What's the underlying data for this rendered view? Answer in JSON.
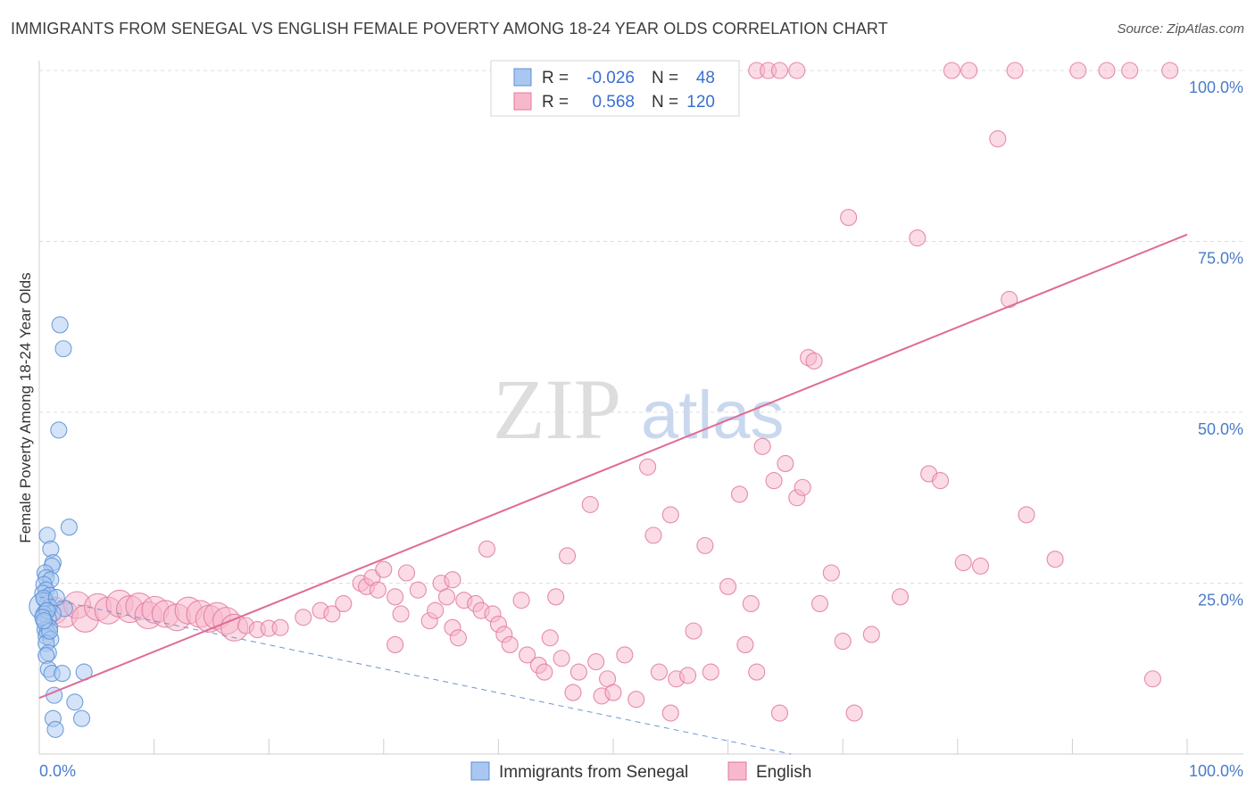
{
  "title": "IMMIGRANTS FROM SENEGAL VS ENGLISH FEMALE POVERTY AMONG 18-24 YEAR OLDS CORRELATION CHART",
  "source": "Source: ZipAtlas.com",
  "watermark": {
    "zip": "ZIP",
    "atlas": "atlas"
  },
  "colors": {
    "blue_fill": "#a9c7f0",
    "blue_stroke": "#5b8fd6",
    "pink_fill": "#f7b8cb",
    "pink_stroke": "#e07a9c",
    "pink_line": "#e06b95",
    "blue_line": "#6b96d6",
    "grid": "#dcdcdc",
    "tick_label": "#4a7cc9"
  },
  "legend": {
    "rows": [
      {
        "r_label": "R =",
        "r_value": "-0.026",
        "n_label": "N =",
        "n_value": "48"
      },
      {
        "r_label": "R =",
        "r_value": "0.568",
        "n_label": "N =",
        "n_value": "120"
      }
    ]
  },
  "bottom_legend": [
    "Immigrants from Senegal",
    "English"
  ],
  "chart_data": {
    "type": "scatter",
    "title": "IMMIGRANTS FROM SENEGAL VS ENGLISH FEMALE POVERTY AMONG 18-24 YEAR OLDS CORRELATION CHART",
    "xlabel": "",
    "ylabel": "Female Poverty Among 18-24 Year Olds",
    "xlim": [
      0,
      100
    ],
    "ylim": [
      0,
      100
    ],
    "x_tick_labels": [
      "0.0%",
      "100.0%"
    ],
    "y_ticks": [
      25,
      50,
      75,
      100
    ],
    "y_tick_labels": [
      "25.0%",
      "50.0%",
      "75.0%",
      "100.0%"
    ],
    "series": [
      {
        "name": "Immigrants from Senegal",
        "r": -0.026,
        "n": 48,
        "trend": {
          "x": [
            0,
            65.5
          ],
          "y": [
            23.0,
            0.0
          ],
          "style": "dashed"
        },
        "points": [
          [
            1.8,
            62.8,
            1
          ],
          [
            2.1,
            59.3,
            1
          ],
          [
            1.7,
            47.4,
            1
          ],
          [
            2.6,
            33.2,
            1
          ],
          [
            0.7,
            32.0,
            1
          ],
          [
            1.0,
            30.0,
            1
          ],
          [
            1.2,
            28.0,
            1
          ],
          [
            1.1,
            27.5,
            1
          ],
          [
            0.5,
            26.5,
            1
          ],
          [
            0.6,
            25.8,
            1
          ],
          [
            1.0,
            25.5,
            1
          ],
          [
            0.4,
            24.8,
            1
          ],
          [
            0.6,
            24.0,
            1
          ],
          [
            0.3,
            23.5,
            1
          ],
          [
            0.9,
            23.2,
            1
          ],
          [
            0.5,
            22.5,
            1
          ],
          [
            0.7,
            22.0,
            1
          ],
          [
            0.3,
            21.6,
            2
          ],
          [
            0.9,
            21.5,
            1
          ],
          [
            2.2,
            21.3,
            1
          ],
          [
            0.6,
            20.9,
            1
          ],
          [
            1.2,
            20.6,
            1
          ],
          [
            0.4,
            20.5,
            1
          ],
          [
            0.8,
            19.8,
            1
          ],
          [
            0.5,
            19.2,
            1
          ],
          [
            0.9,
            18.5,
            1
          ],
          [
            0.5,
            18.2,
            1
          ],
          [
            0.7,
            17.9,
            1
          ],
          [
            0.6,
            17.2,
            1
          ],
          [
            1.0,
            16.8,
            1
          ],
          [
            0.6,
            16.2,
            1
          ],
          [
            0.8,
            14.8,
            1
          ],
          [
            0.6,
            14.4,
            1
          ],
          [
            0.8,
            12.4,
            1
          ],
          [
            1.1,
            11.8,
            1
          ],
          [
            2.0,
            11.8,
            1
          ],
          [
            3.9,
            12.0,
            1
          ],
          [
            1.3,
            8.6,
            1
          ],
          [
            3.1,
            7.6,
            1
          ],
          [
            1.2,
            5.2,
            1
          ],
          [
            3.7,
            5.2,
            1
          ],
          [
            1.4,
            3.6,
            1
          ],
          [
            0.4,
            22.8,
            1
          ],
          [
            0.7,
            21.0,
            1
          ],
          [
            0.3,
            20.0,
            1
          ],
          [
            1.5,
            22.9,
            1
          ],
          [
            0.9,
            18.0,
            1
          ],
          [
            0.4,
            19.5,
            1
          ]
        ]
      },
      {
        "name": "English",
        "r": 0.568,
        "n": 120,
        "trend": {
          "x": [
            0,
            100
          ],
          "y": [
            8.2,
            76.0
          ],
          "style": "solid"
        },
        "points": [
          [
            1.3,
            21.0,
            2
          ],
          [
            2.2,
            20.5,
            2
          ],
          [
            3.3,
            21.8,
            2
          ],
          [
            4.0,
            19.8,
            2
          ],
          [
            5.1,
            21.5,
            2
          ],
          [
            6.0,
            21.0,
            2
          ],
          [
            7.0,
            22.0,
            2
          ],
          [
            7.9,
            21.2,
            2
          ],
          [
            8.7,
            21.6,
            2
          ],
          [
            9.5,
            20.3,
            2
          ],
          [
            10.1,
            21.1,
            2
          ],
          [
            11.0,
            20.5,
            2
          ],
          [
            12.0,
            20.0,
            2
          ],
          [
            13.0,
            21.0,
            2
          ],
          [
            14.0,
            20.5,
            2
          ],
          [
            14.8,
            19.8,
            2
          ],
          [
            15.5,
            20.2,
            2
          ],
          [
            16.3,
            19.5,
            2
          ],
          [
            17.0,
            18.5,
            2
          ],
          [
            18.0,
            18.8,
            1
          ],
          [
            19.0,
            18.2,
            1
          ],
          [
            20.0,
            18.4,
            1
          ],
          [
            21.0,
            18.5,
            1
          ],
          [
            23.0,
            20.0,
            1
          ],
          [
            24.5,
            21.0,
            1
          ],
          [
            25.5,
            20.5,
            1
          ],
          [
            26.5,
            22.0,
            1
          ],
          [
            28.0,
            25.0,
            1
          ],
          [
            28.5,
            24.5,
            1
          ],
          [
            29.0,
            25.8,
            1
          ],
          [
            29.5,
            24.0,
            1
          ],
          [
            30.0,
            27.0,
            1
          ],
          [
            31.0,
            23.0,
            1
          ],
          [
            31.5,
            20.5,
            1
          ],
          [
            32.0,
            26.5,
            1
          ],
          [
            33.0,
            24.0,
            1
          ],
          [
            34.0,
            19.5,
            1
          ],
          [
            34.5,
            21.0,
            1
          ],
          [
            35.0,
            25.0,
            1
          ],
          [
            35.5,
            23.0,
            1
          ],
          [
            36.0,
            18.5,
            1
          ],
          [
            36.5,
            17.0,
            1
          ],
          [
            37.0,
            22.5,
            1
          ],
          [
            38.0,
            22.0,
            1
          ],
          [
            38.5,
            21.0,
            1
          ],
          [
            39.5,
            20.5,
            1
          ],
          [
            40.0,
            19.0,
            1
          ],
          [
            40.5,
            17.5,
            1
          ],
          [
            41.0,
            16.0,
            1
          ],
          [
            42.0,
            22.5,
            1
          ],
          [
            42.5,
            14.5,
            1
          ],
          [
            43.5,
            13.0,
            1
          ],
          [
            44.0,
            12.0,
            1
          ],
          [
            45.0,
            23.0,
            1
          ],
          [
            45.5,
            14.0,
            1
          ],
          [
            46.0,
            29.0,
            1
          ],
          [
            46.5,
            9.0,
            1
          ],
          [
            47.0,
            12.0,
            1
          ],
          [
            48.0,
            36.5,
            1
          ],
          [
            48.5,
            13.5,
            1
          ],
          [
            49.0,
            8.5,
            1
          ],
          [
            49.5,
            11.0,
            1
          ],
          [
            50.0,
            9.0,
            1
          ],
          [
            51.0,
            14.5,
            1
          ],
          [
            52.0,
            8.0,
            1
          ],
          [
            53.0,
            42.0,
            1
          ],
          [
            53.5,
            32.0,
            1
          ],
          [
            54.0,
            12.0,
            1
          ],
          [
            55.0,
            35.0,
            1
          ],
          [
            55.5,
            11.0,
            1
          ],
          [
            56.5,
            11.5,
            1
          ],
          [
            57.0,
            18.0,
            1
          ],
          [
            58.0,
            30.5,
            1
          ],
          [
            58.5,
            12.0,
            1
          ],
          [
            60.0,
            24.5,
            1
          ],
          [
            61.0,
            38.0,
            1
          ],
          [
            61.5,
            16.0,
            1
          ],
          [
            62.0,
            22.0,
            1
          ],
          [
            62.5,
            12.0,
            1
          ],
          [
            63.0,
            45.0,
            1
          ],
          [
            64.0,
            40.0,
            1
          ],
          [
            64.5,
            6.0,
            1
          ],
          [
            65.0,
            42.5,
            1
          ],
          [
            66.0,
            37.5,
            1
          ],
          [
            66.5,
            39.0,
            1
          ],
          [
            67.0,
            58.0,
            1
          ],
          [
            67.5,
            57.5,
            1
          ],
          [
            68.0,
            22.0,
            1
          ],
          [
            69.0,
            26.5,
            1
          ],
          [
            70.0,
            16.5,
            1
          ],
          [
            70.5,
            78.5,
            1
          ],
          [
            71.0,
            6.0,
            1
          ],
          [
            72.5,
            17.5,
            1
          ],
          [
            75.0,
            23.0,
            1
          ],
          [
            76.5,
            75.5,
            1
          ],
          [
            77.5,
            41.0,
            1
          ],
          [
            78.5,
            40.0,
            1
          ],
          [
            79.5,
            100.0,
            1
          ],
          [
            80.5,
            28.0,
            1
          ],
          [
            81.0,
            100.0,
            1
          ],
          [
            82.0,
            27.5,
            1
          ],
          [
            83.5,
            90.0,
            1
          ],
          [
            84.5,
            66.5,
            1
          ],
          [
            85.0,
            100.0,
            1
          ],
          [
            86.0,
            35.0,
            1
          ],
          [
            88.5,
            28.5,
            1
          ],
          [
            90.5,
            100.0,
            1
          ],
          [
            93.0,
            100.0,
            1
          ],
          [
            95.0,
            100.0,
            1
          ],
          [
            97.0,
            11.0,
            1
          ],
          [
            98.5,
            100.0,
            1
          ],
          [
            62.5,
            100.0,
            1
          ],
          [
            63.5,
            100.0,
            1
          ],
          [
            64.5,
            100.0,
            1
          ],
          [
            66.0,
            100.0,
            1
          ],
          [
            39.0,
            30.0,
            1
          ],
          [
            36.0,
            25.5,
            1
          ],
          [
            44.5,
            17.0,
            1
          ],
          [
            55.0,
            6.0,
            1
          ],
          [
            31.0,
            16.0,
            1
          ]
        ]
      }
    ]
  }
}
